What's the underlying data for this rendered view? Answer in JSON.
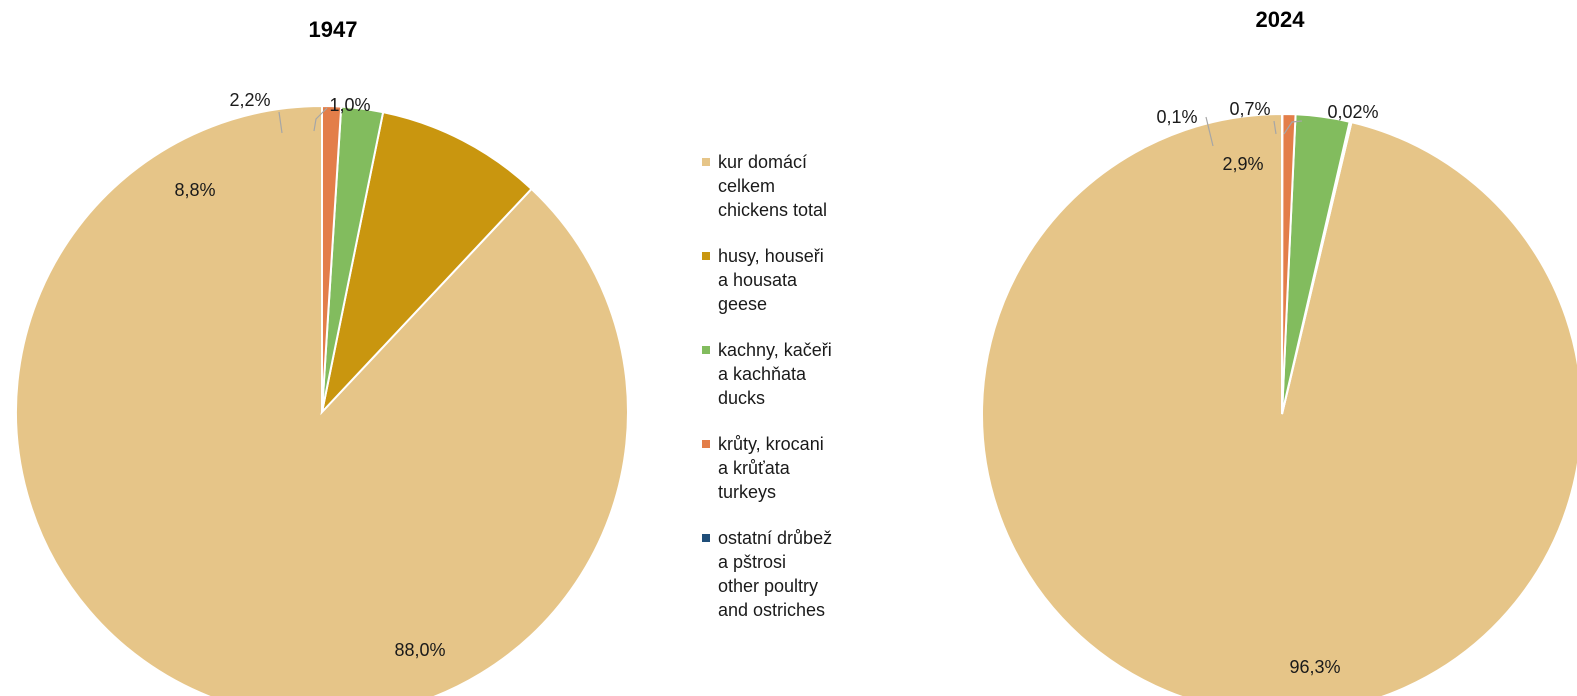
{
  "chart_data": [
    {
      "type": "pie",
      "title": "1947",
      "slices": [
        {
          "key": "chickens",
          "value": 88.0,
          "label": "88,0%"
        },
        {
          "key": "geese",
          "value": 8.8,
          "label": "8,8%"
        },
        {
          "key": "ducks",
          "value": 2.2,
          "label": "2,2%"
        },
        {
          "key": "turkeys",
          "value": 1.0,
          "label": "1,0%"
        }
      ]
    },
    {
      "type": "pie",
      "title": "2024",
      "slices": [
        {
          "key": "chickens",
          "value": 96.3,
          "label": "96,3%"
        },
        {
          "key": "other",
          "value": 0.1,
          "label": "0,1%"
        },
        {
          "key": "ducks",
          "value": 2.9,
          "label": "2,9%"
        },
        {
          "key": "turkeys",
          "value": 0.7,
          "label": "0,7%"
        },
        {
          "key": "geese",
          "value": 0.02,
          "label": "0,02%"
        }
      ]
    }
  ],
  "legend": [
    {
      "key": "chickens",
      "color": "#e6c588",
      "lines": [
        "kur domácí",
        "celkem",
        "chickens total"
      ]
    },
    {
      "key": "geese",
      "color": "#c9960f",
      "lines": [
        "husy, houseři",
        "a housata",
        "geese"
      ]
    },
    {
      "key": "ducks",
      "color": "#82bc5e",
      "lines": [
        "kachny, kačeři",
        "a kachňata",
        "ducks"
      ]
    },
    {
      "key": "turkeys",
      "color": "#e37e49",
      "lines": [
        "krůty, krocani",
        "a krůťata",
        "turkeys"
      ]
    },
    {
      "key": "other",
      "color": "#1f4e79",
      "lines": [
        "ostatní drůbež",
        "a pštrosi",
        "other poultry",
        "and ostriches"
      ]
    }
  ]
}
